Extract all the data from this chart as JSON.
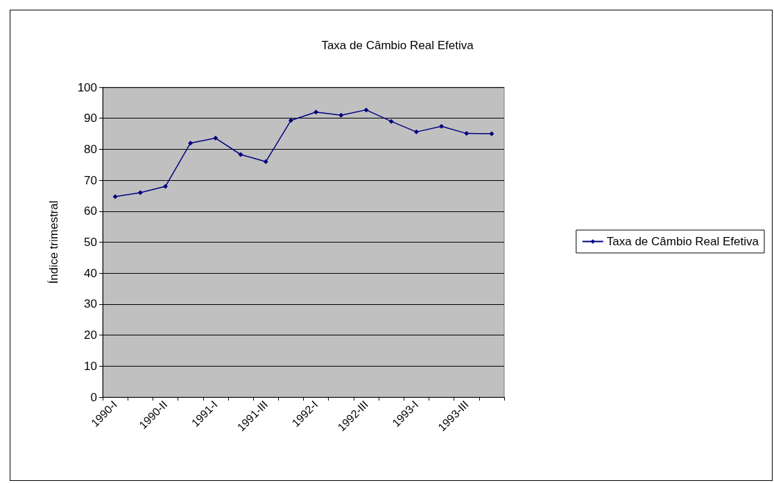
{
  "chart_data": {
    "type": "line",
    "title": "Taxa de Câmbio Real Efetiva",
    "ylabel": "Índice trimestral",
    "categories": [
      "1990-I",
      null,
      "1990-II",
      null,
      "1991-I",
      null,
      "1991-III",
      null,
      "1992-I",
      null,
      "1992-III",
      null,
      "1993-I",
      null,
      "1993-III",
      null
    ],
    "series": [
      {
        "name": "Taxa de Câmbio Real Efetiva",
        "color": "#000080",
        "values": [
          64.7,
          66,
          68,
          82,
          83.6,
          78.3,
          76,
          89.3,
          92,
          91,
          92.7,
          89,
          85.6,
          87.4,
          85.1,
          85
        ]
      }
    ],
    "ylim": [
      0,
      100
    ],
    "yticks": [
      0,
      10,
      20,
      30,
      40,
      50,
      60,
      70,
      80,
      90,
      100
    ],
    "grid": "y",
    "legend": "right",
    "marker": "diamond",
    "line_style": "solid"
  }
}
